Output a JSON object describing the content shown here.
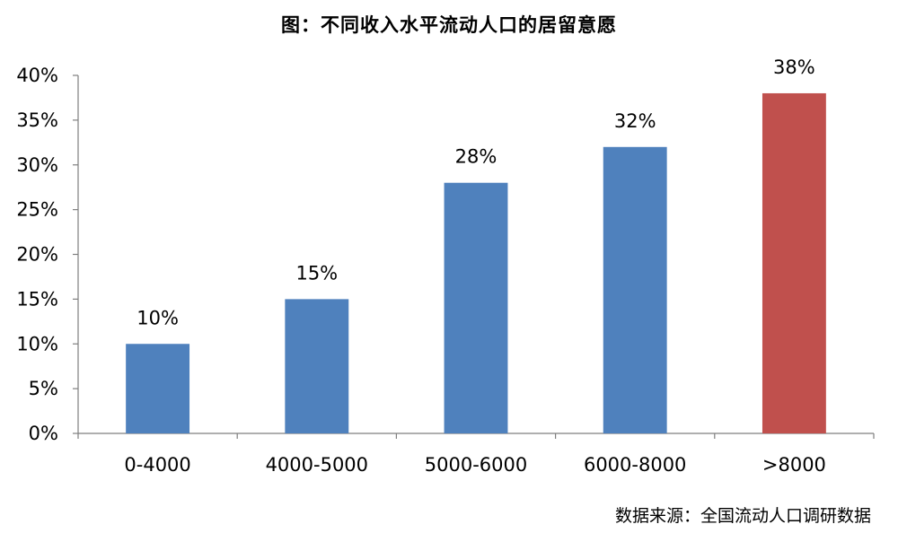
{
  "chart_data": {
    "type": "bar",
    "title": "图：不同收入水平流动人口的居留意愿",
    "categories": [
      "0-4000",
      "4000-5000",
      "5000-6000",
      "6000-8000",
      ">8000"
    ],
    "values": [
      10,
      15,
      28,
      32,
      38
    ],
    "data_labels": [
      "10%",
      "15%",
      "28%",
      "32%",
      "38%"
    ],
    "bar_colors": [
      "#4f81bd",
      "#4f81bd",
      "#4f81bd",
      "#4f81bd",
      "#c0504d"
    ],
    "y_ticks": [
      "0%",
      "5%",
      "10%",
      "15%",
      "20%",
      "25%",
      "30%",
      "35%",
      "40%"
    ],
    "ylim": [
      0,
      40
    ],
    "grid": false,
    "legend": "none",
    "xlabel": "",
    "ylabel": ""
  },
  "source": "数据来源：全国流动人口调研数据"
}
